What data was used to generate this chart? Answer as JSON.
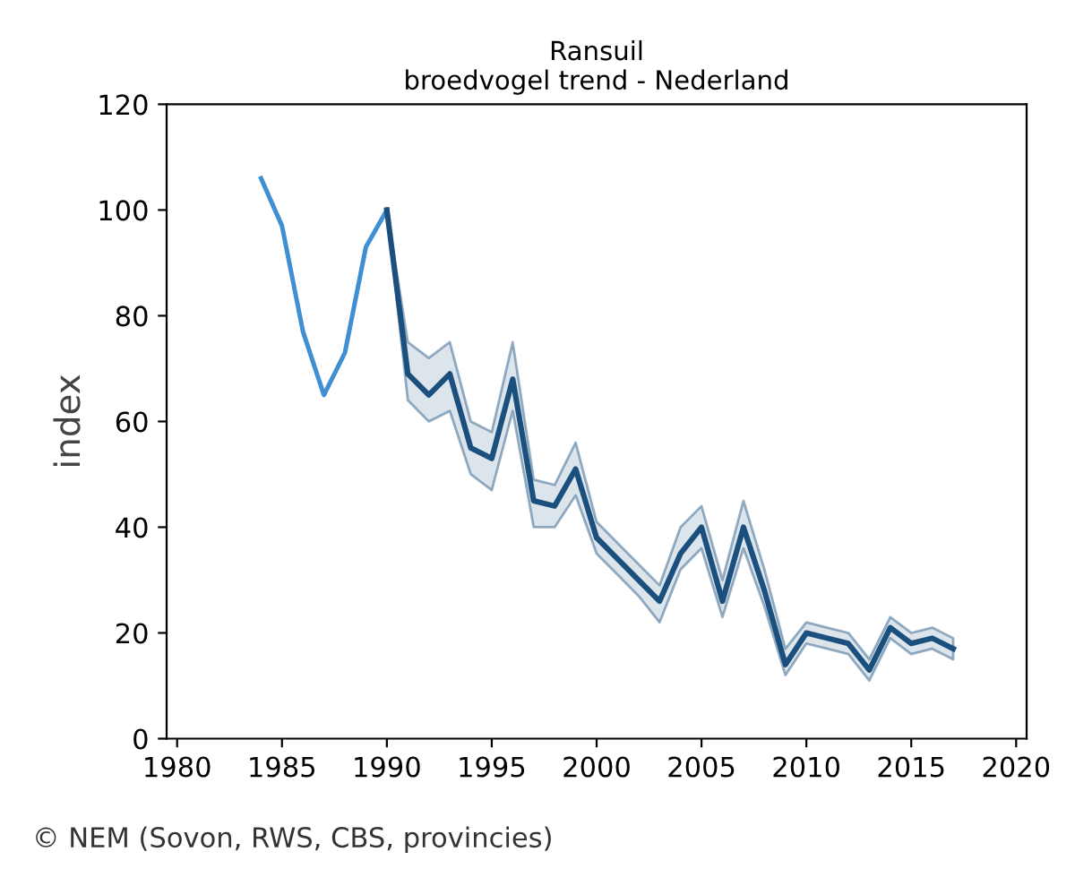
{
  "chart_data": {
    "type": "line",
    "title": "Ransuil",
    "subtitle": "broedvogel trend - Nederland",
    "ylabel": "index",
    "annotations": [
      "© NEM (Sovon, RWS, CBS, provincies)"
    ],
    "xlim": [
      1979.5,
      2020.5
    ],
    "xticks": [
      1980,
      1985,
      1990,
      1995,
      2000,
      2005,
      2010,
      2015,
      2020
    ],
    "ylim": [
      0,
      120
    ],
    "yticks": [
      0,
      20,
      40,
      60,
      80,
      100,
      120
    ],
    "grid": false,
    "legend": false,
    "marker": "none",
    "series": [
      {
        "color": "#3f8fd2",
        "x": [
          1984,
          1985,
          1986,
          1987,
          1988,
          1989,
          1990
        ],
        "values": [
          106,
          97,
          77,
          65,
          73,
          93,
          100
        ]
      },
      {
        "color": "#1b4f7e",
        "x": [
          1990,
          1991,
          1992,
          1993,
          1994,
          1995,
          1996,
          1997,
          1998,
          1999,
          2000,
          2001,
          2002,
          2003,
          2004,
          2005,
          2006,
          2007,
          2008,
          2009,
          2010,
          2011,
          2012,
          2013,
          2014,
          2015,
          2016,
          2017
        ],
        "values": [
          100,
          69,
          65,
          69,
          55,
          53,
          68,
          45,
          44,
          51,
          38,
          34,
          30,
          26,
          35,
          40,
          26,
          40,
          28,
          14,
          20,
          19,
          18,
          13,
          21,
          18,
          19,
          17
        ],
        "lower": [
          100,
          64,
          60,
          62,
          50,
          47,
          62,
          40,
          40,
          46,
          35,
          31,
          27,
          22,
          32,
          36,
          23,
          36,
          25,
          12,
          18,
          17,
          16,
          11,
          19,
          16,
          17,
          15
        ],
        "upper": [
          100,
          75,
          72,
          75,
          60,
          58,
          75,
          49,
          48,
          56,
          41,
          37,
          33,
          29,
          40,
          44,
          30,
          45,
          32,
          17,
          22,
          21,
          20,
          15,
          23,
          20,
          21,
          19
        ]
      }
    ]
  }
}
